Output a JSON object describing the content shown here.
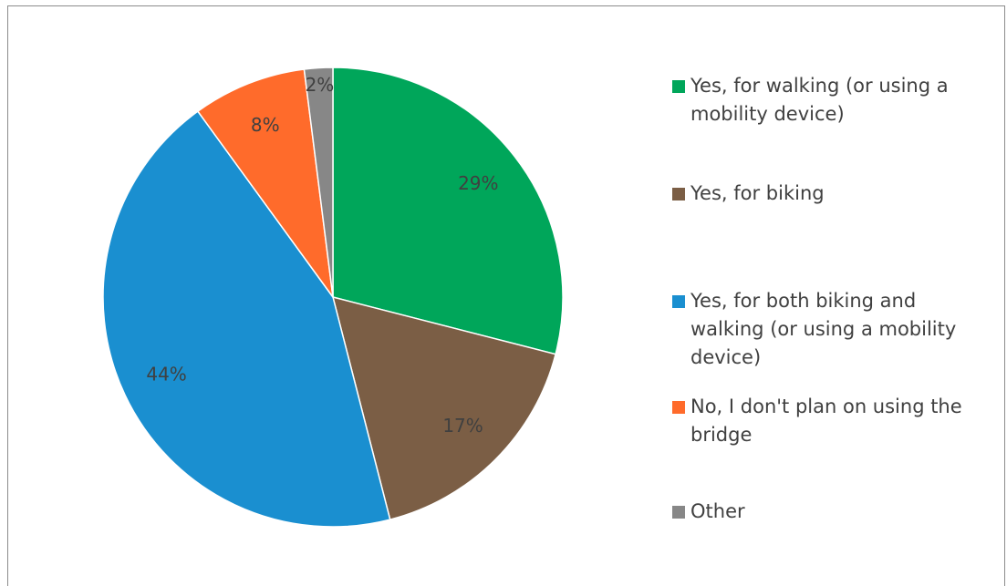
{
  "chart_data": {
    "type": "pie",
    "categories": [
      "Yes, for walking (or using a mobility device)",
      "Yes, for biking",
      "Yes, for both biking and walking (or using a mobility device)",
      "No, I don't plan on using the bridge",
      "Other"
    ],
    "values": [
      29,
      17,
      44,
      8,
      2
    ],
    "value_labels": [
      "29%",
      "17%",
      "44%",
      "8%",
      "2%"
    ],
    "colors": [
      "#00a65a",
      "#7b5e45",
      "#1a8fd0",
      "#ff6b2b",
      "#878787"
    ]
  }
}
